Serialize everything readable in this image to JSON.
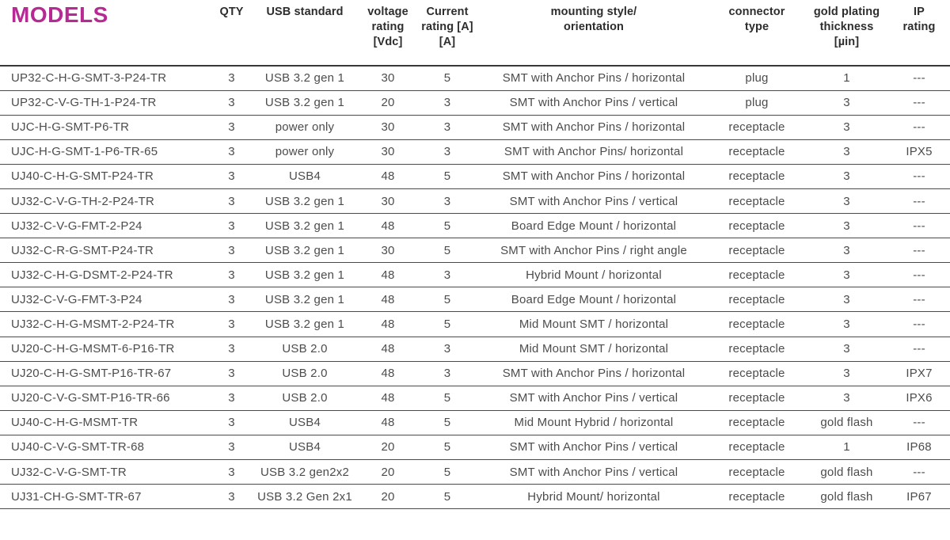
{
  "page": {
    "title": "MODELS",
    "accent_color": "#b52a93"
  },
  "table": {
    "column_keys": [
      "model",
      "qty",
      "usb_standard",
      "voltage_rating",
      "current_rating",
      "mounting_style",
      "connector_type",
      "gold_plating",
      "ip_rating"
    ],
    "header": [
      {
        "key": "qty",
        "lines": [
          "QTY"
        ]
      },
      {
        "key": "usb_standard",
        "lines": [
          "USB standard"
        ]
      },
      {
        "key": "voltage_rating",
        "lines": [
          "voltage",
          "rating",
          "[Vdc]"
        ]
      },
      {
        "key": "current_rating",
        "lines": [
          "Current",
          "rating [A]",
          "[A]"
        ]
      },
      {
        "key": "mounting_style",
        "lines": [
          "mounting style/",
          "orientation"
        ]
      },
      {
        "key": "connector_type",
        "lines": [
          "connector",
          "type"
        ]
      },
      {
        "key": "gold_plating",
        "lines": [
          "gold plating",
          "thickness",
          "[µin]"
        ]
      },
      {
        "key": "ip_rating",
        "lines": [
          "IP",
          "rating"
        ]
      }
    ],
    "rows": [
      [
        "UP32-C-H-G-SMT-3-P24-TR",
        "3",
        "USB 3.2 gen 1",
        "30",
        "5",
        "SMT with Anchor Pins / horizontal",
        "plug",
        "1",
        "---"
      ],
      [
        "UP32-C-V-G-TH-1-P24-TR",
        "3",
        "USB 3.2 gen 1",
        "20",
        "3",
        "SMT with Anchor Pins / vertical",
        "plug",
        "3",
        "---"
      ],
      [
        "UJC-H-G-SMT-P6-TR",
        "3",
        "power only",
        "30",
        "3",
        "SMT with Anchor Pins / horizontal",
        "receptacle",
        "3",
        "---"
      ],
      [
        "UJC-H-G-SMT-1-P6-TR-65",
        "3",
        "power only",
        "30",
        "3",
        "SMT with Anchor Pins/ horizontal",
        "receptacle",
        "3",
        "IPX5"
      ],
      [
        "UJ40-C-H-G-SMT-P24-TR",
        "3",
        "USB4",
        "48",
        "5",
        "SMT with Anchor Pins / horizontal",
        "receptacle",
        "3",
        "---"
      ],
      [
        "UJ32-C-V-G-TH-2-P24-TR",
        "3",
        "USB 3.2 gen 1",
        "30",
        "3",
        "SMT with Anchor Pins / vertical",
        "receptacle",
        "3",
        "---"
      ],
      [
        "UJ32-C-V-G-FMT-2-P24",
        "3",
        "USB 3.2 gen 1",
        "48",
        "5",
        "Board Edge Mount / horizontal",
        "receptacle",
        "3",
        "---"
      ],
      [
        "UJ32-C-R-G-SMT-P24-TR",
        "3",
        "USB 3.2 gen 1",
        "30",
        "5",
        "SMT with Anchor Pins / right angle",
        "receptacle",
        "3",
        "---"
      ],
      [
        "UJ32-C-H-G-DSMT-2-P24-TR",
        "3",
        "USB 3.2 gen 1",
        "48",
        "3",
        "Hybrid Mount / horizontal",
        "receptacle",
        "3",
        "---"
      ],
      [
        "UJ32-C-V-G-FMT-3-P24",
        "3",
        "USB 3.2 gen 1",
        "48",
        "5",
        "Board Edge Mount / horizontal",
        "receptacle",
        "3",
        "---"
      ],
      [
        "UJ32-C-H-G-MSMT-2-P24-TR",
        "3",
        "USB 3.2 gen 1",
        "48",
        "5",
        "Mid Mount SMT / horizontal",
        "receptacle",
        "3",
        "---"
      ],
      [
        "UJ20-C-H-G-MSMT-6-P16-TR",
        "3",
        "USB 2.0",
        "48",
        "3",
        "Mid Mount SMT / horizontal",
        "receptacle",
        "3",
        "---"
      ],
      [
        "UJ20-C-H-G-SMT-P16-TR-67",
        "3",
        "USB 2.0",
        "48",
        "3",
        "SMT with Anchor Pins / horizontal",
        "receptacle",
        "3",
        "IPX7"
      ],
      [
        "UJ20-C-V-G-SMT-P16-TR-66",
        "3",
        "USB 2.0",
        "48",
        "5",
        "SMT with Anchor Pins / vertical",
        "receptacle",
        "3",
        "IPX6"
      ],
      [
        "UJ40-C-H-G-MSMT-TR",
        "3",
        "USB4",
        "48",
        "5",
        "Mid Mount Hybrid / horizontal",
        "receptacle",
        "gold flash",
        "---"
      ],
      [
        "UJ40-C-V-G-SMT-TR-68",
        "3",
        "USB4",
        "20",
        "5",
        "SMT with Anchor Pins / vertical",
        "receptacle",
        "1",
        "IP68"
      ],
      [
        "UJ32-C-V-G-SMT-TR",
        "3",
        "USB 3.2 gen2x2",
        "20",
        "5",
        "SMT with Anchor Pins / vertical",
        "receptacle",
        "gold flash",
        "---"
      ],
      [
        "UJ31-CH-G-SMT-TR-67",
        "3",
        "USB 3.2 Gen 2x1",
        "20",
        "5",
        "Hybrid Mount/ horizontal",
        "receptacle",
        "gold flash",
        "IP67"
      ]
    ]
  }
}
